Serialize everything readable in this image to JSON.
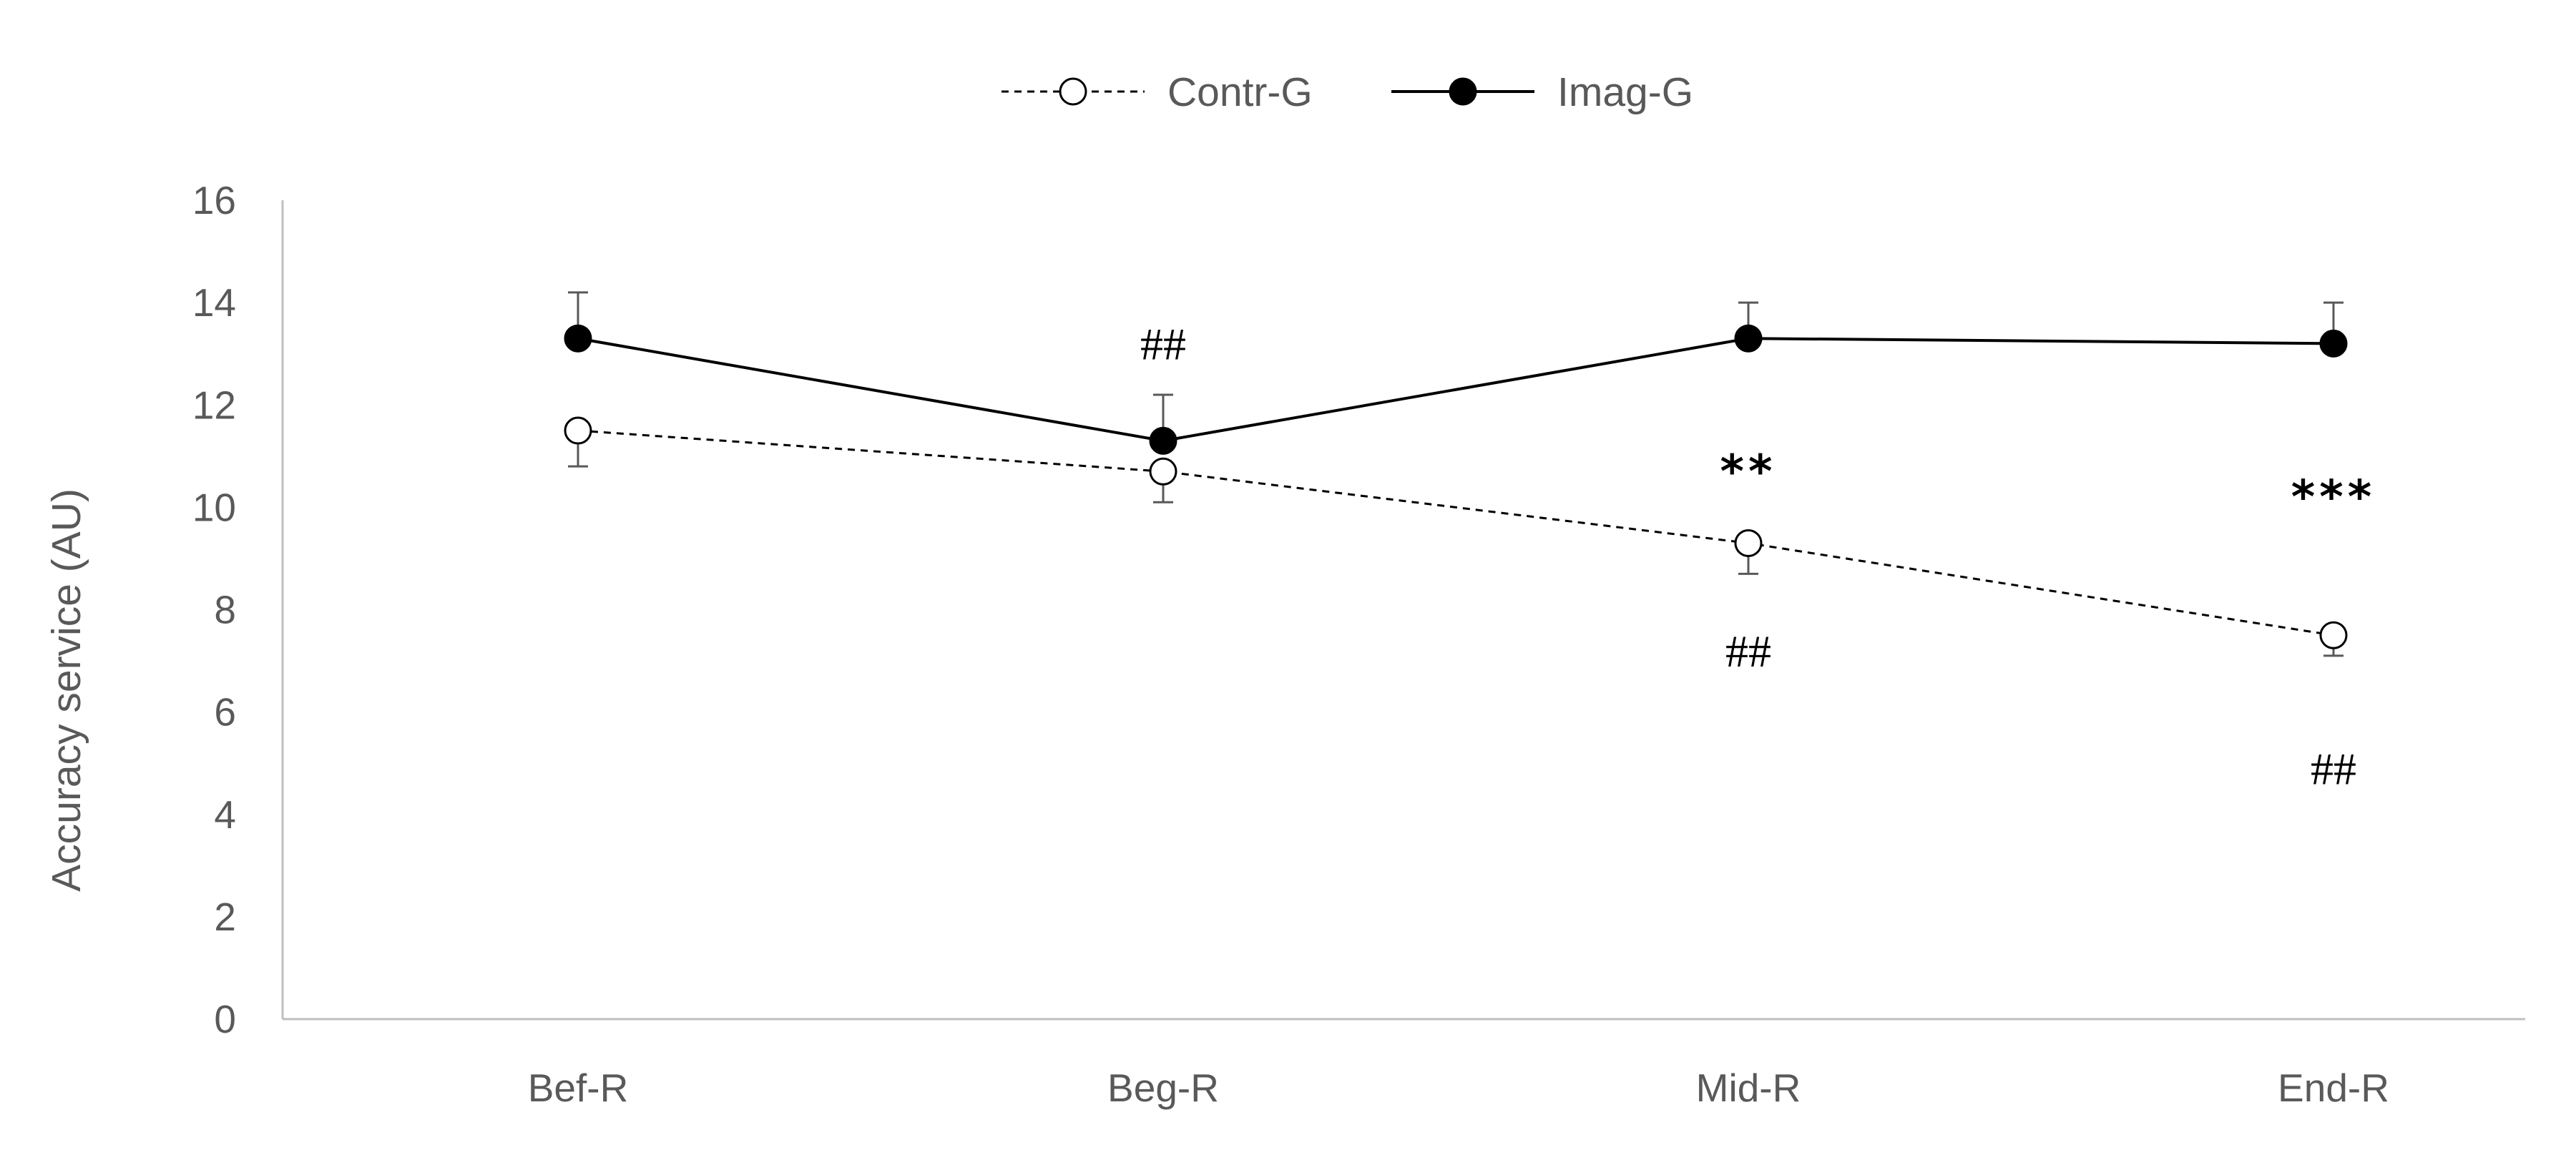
{
  "chart_data": {
    "type": "line",
    "title": "",
    "xlabel": "",
    "ylabel": "Accuracy service (AU)",
    "categories": [
      "Bef-R",
      "Beg-R",
      "Mid-R",
      "End-R"
    ],
    "ylim": [
      0,
      16
    ],
    "yticks": [
      0,
      2,
      4,
      6,
      8,
      10,
      12,
      14,
      16
    ],
    "ytick_labels": [
      "0",
      "2",
      "4",
      "6",
      "8",
      "10",
      "12",
      "14",
      "16"
    ],
    "grid": false,
    "legend_position": "top-center",
    "series": [
      {
        "name": "Contr-G",
        "values": [
          11.5,
          10.7,
          9.3,
          7.5
        ],
        "error": [
          0.7,
          0.6,
          0.6,
          0.4
        ],
        "line_style": "dashed",
        "marker": "open-circle",
        "color": "#000000"
      },
      {
        "name": "Imag-G",
        "values": [
          13.3,
          11.3,
          13.3,
          13.2
        ],
        "error": [
          0.9,
          0.9,
          0.7,
          0.8
        ],
        "line_style": "solid",
        "marker": "filled-circle",
        "color": "#000000"
      }
    ],
    "annotations": [
      {
        "text": "##",
        "category": "Beg-R",
        "y": 13.2,
        "kind": "hash"
      },
      {
        "text": "**",
        "category": "Mid-R",
        "y": 10.7,
        "kind": "star"
      },
      {
        "text": "##",
        "category": "Mid-R",
        "y": 7.2,
        "kind": "hash"
      },
      {
        "text": "***",
        "category": "End-R",
        "y": 10.2,
        "kind": "star"
      },
      {
        "text": "##",
        "category": "End-R",
        "y": 4.9,
        "kind": "hash"
      }
    ],
    "axis_color": "#bfbfbf",
    "text_color": "#595959"
  }
}
